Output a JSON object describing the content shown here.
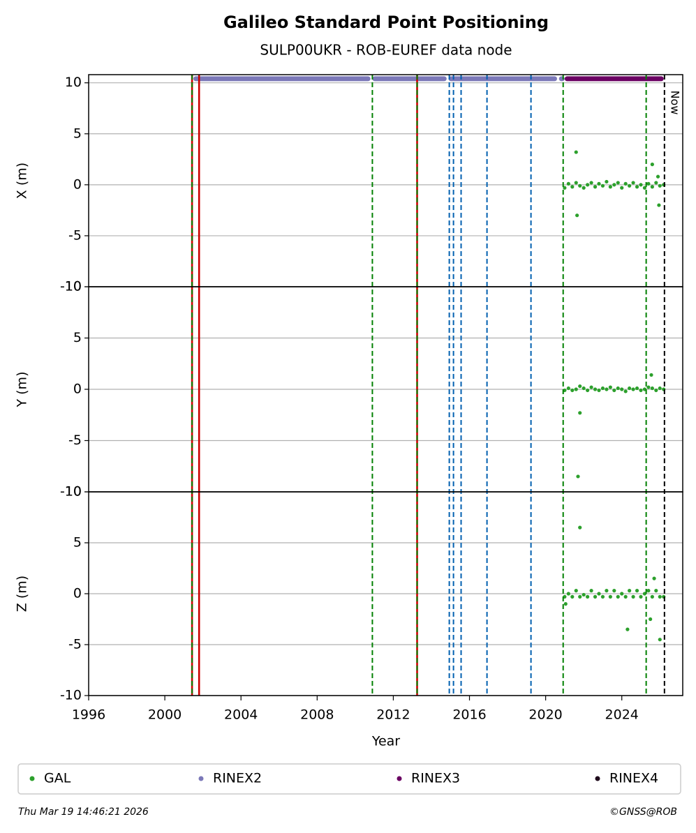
{
  "chart_data": {
    "type": "scatter",
    "title": "Galileo Standard Point Positioning",
    "subtitle": "SULP00UKR - ROB-EUREF data node",
    "xlabel": "Year",
    "xlim": [
      1996,
      2027.2
    ],
    "xticks": [
      1996,
      2000,
      2004,
      2008,
      2012,
      2016,
      2020,
      2024
    ],
    "grid": true,
    "panels": [
      {
        "ylabel": "X (m)",
        "ylim": [
          -10,
          10.8
        ],
        "yticks": [
          -10,
          -5,
          0,
          5,
          10
        ],
        "series": [
          {
            "name": "GAL",
            "color": "#2ca02c",
            "x": [
              2021.0,
              2021.2,
              2021.4,
              2021.6,
              2021.8,
              2022.0,
              2022.2,
              2022.4,
              2022.6,
              2022.8,
              2023.0,
              2023.2,
              2023.4,
              2023.6,
              2023.8,
              2024.0,
              2024.2,
              2024.4,
              2024.6,
              2024.8,
              2025.0,
              2025.2,
              2025.4,
              2025.6,
              2025.8,
              2026.0,
              2026.2,
              2021.6,
              2021.65,
              2025.6,
              2025.95,
              2025.9
            ],
            "values": [
              -0.3,
              0.1,
              -0.2,
              0.2,
              -0.1,
              -0.3,
              0.0,
              0.2,
              -0.2,
              0.1,
              -0.1,
              0.3,
              -0.2,
              0.0,
              0.2,
              -0.3,
              0.1,
              -0.1,
              0.2,
              -0.2,
              0.0,
              -0.3,
              0.1,
              -0.2,
              0.2,
              -0.1,
              0.0,
              3.2,
              -3.0,
              2.0,
              -2.0,
              0.8
            ]
          }
        ]
      },
      {
        "ylabel": "Y (m)",
        "ylim": [
          -10,
          10
        ],
        "yticks": [
          -10,
          -5,
          0,
          5,
          10
        ],
        "series": [
          {
            "name": "GAL",
            "color": "#2ca02c",
            "x": [
              2021.0,
              2021.2,
              2021.4,
              2021.6,
              2021.8,
              2022.0,
              2022.2,
              2022.4,
              2022.6,
              2022.8,
              2023.0,
              2023.2,
              2023.4,
              2023.6,
              2023.8,
              2024.0,
              2024.2,
              2024.4,
              2024.6,
              2024.8,
              2025.0,
              2025.2,
              2025.4,
              2025.6,
              2025.8,
              2026.0,
              2026.2,
              2021.8,
              2021.7,
              2025.55
            ],
            "values": [
              -0.1,
              0.1,
              -0.1,
              0.0,
              0.3,
              0.1,
              -0.1,
              0.2,
              0.0,
              -0.1,
              0.1,
              0.0,
              0.2,
              -0.1,
              0.1,
              0.0,
              -0.2,
              0.1,
              0.0,
              0.1,
              -0.1,
              0.0,
              0.2,
              0.1,
              -0.1,
              0.1,
              0.0,
              -2.3,
              -8.5,
              1.4
            ]
          }
        ]
      },
      {
        "ylabel": "Z (m)",
        "ylim": [
          -10,
          10
        ],
        "yticks": [
          -10,
          -5,
          0,
          5,
          10
        ],
        "series": [
          {
            "name": "GAL",
            "color": "#2ca02c",
            "x": [
              2021.0,
              2021.2,
              2021.4,
              2021.6,
              2021.8,
              2022.0,
              2022.2,
              2022.4,
              2022.6,
              2022.8,
              2023.0,
              2023.2,
              2023.4,
              2023.6,
              2023.8,
              2024.0,
              2024.2,
              2024.4,
              2024.6,
              2024.8,
              2025.0,
              2025.2,
              2025.4,
              2025.6,
              2025.8,
              2026.0,
              2026.2,
              2021.8,
              2024.3,
              2025.5,
              2026.0,
              2025.7,
              2021.05
            ],
            "values": [
              -0.3,
              0.0,
              -0.3,
              0.3,
              -0.3,
              -0.1,
              -0.3,
              0.3,
              -0.3,
              0.0,
              -0.3,
              0.3,
              -0.3,
              0.3,
              -0.3,
              0.0,
              -0.3,
              0.3,
              -0.3,
              0.3,
              -0.3,
              0.0,
              0.3,
              -0.3,
              0.3,
              -0.3,
              -0.3,
              6.5,
              -3.5,
              -2.5,
              -4.5,
              1.5,
              -1.0
            ]
          }
        ]
      }
    ],
    "availability": [
      {
        "name": "RINEX2",
        "color": "#7b78b8",
        "y": 10.4,
        "spans": [
          [
            2001.5,
            2010.8
          ],
          [
            2010.9,
            2014.8
          ],
          [
            2014.9,
            2020.6
          ],
          [
            2020.7,
            2021.0
          ]
        ]
      },
      {
        "name": "RINEX3",
        "color": "#6a0062",
        "y": 10.4,
        "spans": [
          [
            2021.0,
            2026.2
          ]
        ]
      },
      {
        "name": "RINEX4",
        "color": "#1f0a1c",
        "y": 10.4,
        "spans": []
      }
    ],
    "vlines": [
      {
        "x": 2001.43,
        "color": "#cc0000",
        "dash": false
      },
      {
        "x": 2001.8,
        "color": "#cc0000",
        "dash": false
      },
      {
        "x": 2013.25,
        "color": "#cc0000",
        "dash": false
      },
      {
        "x": 2001.43,
        "color": "#008000",
        "dash": true
      },
      {
        "x": 2010.9,
        "color": "#008000",
        "dash": true
      },
      {
        "x": 2013.25,
        "color": "#008000",
        "dash": true
      },
      {
        "x": 2020.92,
        "color": "#008000",
        "dash": true
      },
      {
        "x": 2025.28,
        "color": "#008000",
        "dash": true
      },
      {
        "x": 2014.94,
        "color": "#0060b0",
        "dash": true
      },
      {
        "x": 2015.16,
        "color": "#0060b0",
        "dash": true
      },
      {
        "x": 2015.56,
        "color": "#0060b0",
        "dash": true
      },
      {
        "x": 2016.92,
        "color": "#0060b0",
        "dash": true
      },
      {
        "x": 2019.23,
        "color": "#0060b0",
        "dash": true
      }
    ],
    "now": {
      "x": 2026.24,
      "label": "Now"
    }
  },
  "footer": {
    "date": "Thu Mar 19 14:46:21 2026",
    "credit": "©GNSS@ROB"
  }
}
